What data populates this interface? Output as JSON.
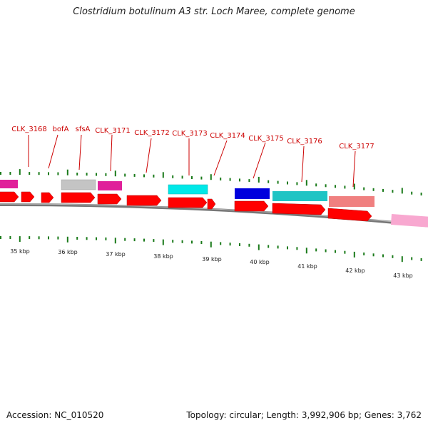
{
  "title": "Clostridium botulinum A3 str. Loch Maree, complete genome",
  "footer": {
    "accession": "Accession: NC_010520",
    "summary": "Topology: circular; Length: 3,992,906 bp; Genes: 3,762"
  },
  "colors": {
    "cds": "#ff0000",
    "tick": "#1a7a1a",
    "backbone": "#888888",
    "label": "#cc0000"
  },
  "gene_labels": [
    "CLK_3168",
    "bofA",
    "sfsA",
    "CLK_3171",
    "CLK_3172",
    "CLK_3173",
    "CLK_3174",
    "CLK_3175",
    "CLK_3176",
    "CLK_3177"
  ],
  "kbp_labels": [
    "35 kbp",
    "36 kbp",
    "37 kbp",
    "38 kbp",
    "39 kbp",
    "40 kbp",
    "41 kbp",
    "42 kbp",
    "43 kbp"
  ],
  "feature_colors": [
    "#e0209a",
    "#c0c0c0",
    "#e0209a",
    "#00e0e0",
    "#0000dd",
    "#20c0c0",
    "#f08080",
    "#f8a8d0"
  ]
}
